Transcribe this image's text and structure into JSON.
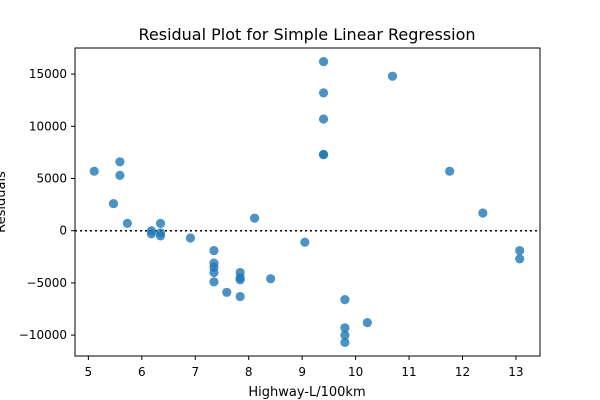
{
  "chart_data": {
    "type": "scatter",
    "title": "Residual Plot for Simple Linear Regression",
    "xlabel": "Highway-L/100km",
    "ylabel": "Residuals",
    "xlim": [
      4.75,
      13.45
    ],
    "ylim": [
      -12000,
      17500
    ],
    "xticks": [
      5,
      6,
      7,
      8,
      9,
      10,
      11,
      12,
      13
    ],
    "yticks": [
      -10000,
      -5000,
      0,
      5000,
      10000,
      15000
    ],
    "reference_line": {
      "y": 0,
      "style": "dotted",
      "color": "#000000"
    },
    "marker_color": "#1f77b4",
    "grid": false,
    "points": [
      {
        "x": 5.11,
        "y": 5700
      },
      {
        "x": 5.47,
        "y": 2600
      },
      {
        "x": 5.59,
        "y": 6600
      },
      {
        "x": 5.59,
        "y": 5300
      },
      {
        "x": 5.73,
        "y": 700
      },
      {
        "x": 6.18,
        "y": 0
      },
      {
        "x": 6.18,
        "y": -300
      },
      {
        "x": 6.35,
        "y": 700
      },
      {
        "x": 6.35,
        "y": -200
      },
      {
        "x": 6.35,
        "y": -500
      },
      {
        "x": 6.91,
        "y": -700
      },
      {
        "x": 7.35,
        "y": -1900
      },
      {
        "x": 7.35,
        "y": -3100
      },
      {
        "x": 7.35,
        "y": -3500
      },
      {
        "x": 7.35,
        "y": -4000
      },
      {
        "x": 7.35,
        "y": -4900
      },
      {
        "x": 7.59,
        "y": -5900
      },
      {
        "x": 7.84,
        "y": -4000
      },
      {
        "x": 7.84,
        "y": -4500
      },
      {
        "x": 7.84,
        "y": -4700
      },
      {
        "x": 7.84,
        "y": -6300
      },
      {
        "x": 8.11,
        "y": 1200
      },
      {
        "x": 8.41,
        "y": -4600
      },
      {
        "x": 9.05,
        "y": -1100
      },
      {
        "x": 9.4,
        "y": 16200
      },
      {
        "x": 9.4,
        "y": 13200
      },
      {
        "x": 9.4,
        "y": 10700
      },
      {
        "x": 9.4,
        "y": 7300
      },
      {
        "x": 9.4,
        "y": 7300
      },
      {
        "x": 9.8,
        "y": -6600
      },
      {
        "x": 9.8,
        "y": -9300
      },
      {
        "x": 9.8,
        "y": -10000
      },
      {
        "x": 9.8,
        "y": -10700
      },
      {
        "x": 10.22,
        "y": -8800
      },
      {
        "x": 10.69,
        "y": 14800
      },
      {
        "x": 11.76,
        "y": 5700
      },
      {
        "x": 12.38,
        "y": 1700
      },
      {
        "x": 13.07,
        "y": -1900
      },
      {
        "x": 13.07,
        "y": -2700
      }
    ]
  }
}
